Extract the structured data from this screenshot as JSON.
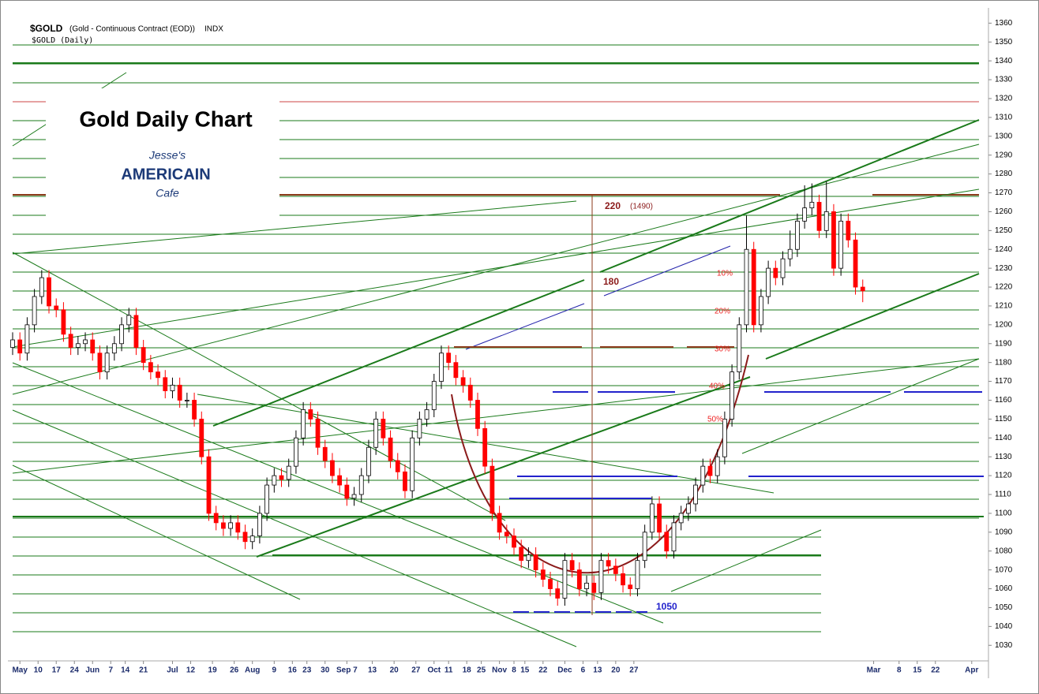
{
  "chart_data": {
    "type": "candlestick",
    "header": "$GOLD",
    "header_desc": "(Gold - Continuous Contract (EOD))",
    "header_exchange": "INDX",
    "subheader": "$GOLD (Daily)",
    "title": "Gold Daily Chart",
    "logo": [
      "Jesse's",
      "AMERICAIN",
      "Cafe"
    ],
    "annotations": [
      "220",
      "(1490)",
      "180",
      "10%",
      "20%",
      "30%",
      "40%",
      "50%",
      "1050"
    ],
    "up_color": "#ffffff",
    "down_color": "#ff0000",
    "xlim": [
      0,
      266
    ],
    "ylim": [
      1023,
      1366
    ],
    "yticks": [
      1030,
      1040,
      1050,
      1060,
      1070,
      1080,
      1090,
      1100,
      1110,
      1120,
      1130,
      1140,
      1150,
      1160,
      1170,
      1180,
      1190,
      1200,
      1210,
      1220,
      1230,
      1240,
      1250,
      1260,
      1270,
      1280,
      1290,
      1300,
      1310,
      1320,
      1330,
      1340,
      1350,
      1360
    ],
    "xticks": [
      {
        "value": 2,
        "label": "May"
      },
      {
        "value": 7,
        "label": "10"
      },
      {
        "value": 12,
        "label": "17"
      },
      {
        "value": 17,
        "label": "24"
      },
      {
        "value": 22,
        "label": "Jun"
      },
      {
        "value": 27,
        "label": "7"
      },
      {
        "value": 31,
        "label": "14"
      },
      {
        "value": 36,
        "label": "21"
      },
      {
        "value": 44,
        "label": "Jul"
      },
      {
        "value": 49,
        "label": "12"
      },
      {
        "value": 55,
        "label": "19"
      },
      {
        "value": 61,
        "label": "26"
      },
      {
        "value": 66,
        "label": "Aug"
      },
      {
        "value": 72,
        "label": "9"
      },
      {
        "value": 77,
        "label": "16"
      },
      {
        "value": 81,
        "label": "23"
      },
      {
        "value": 86,
        "label": "30"
      },
      {
        "value": 92,
        "label": "Sep 7"
      },
      {
        "value": 99,
        "label": "13"
      },
      {
        "value": 105,
        "label": "20"
      },
      {
        "value": 111,
        "label": "27"
      },
      {
        "value": 116,
        "label": "Oct"
      },
      {
        "value": 120,
        "label": "11"
      },
      {
        "value": 125,
        "label": "18"
      },
      {
        "value": 129,
        "label": "25"
      },
      {
        "value": 134,
        "label": "Nov"
      },
      {
        "value": 138,
        "label": "8"
      },
      {
        "value": 141,
        "label": "15"
      },
      {
        "value": 146,
        "label": "22"
      },
      {
        "value": 152,
        "label": "Dec"
      },
      {
        "value": 157,
        "label": "6"
      },
      {
        "value": 161,
        "label": "13"
      },
      {
        "value": 166,
        "label": "20"
      },
      {
        "value": 171,
        "label": "27"
      },
      {
        "value": 237,
        "label": "Mar"
      },
      {
        "value": 244,
        "label": "8"
      },
      {
        "value": 249,
        "label": "15"
      },
      {
        "value": 254,
        "label": "22"
      },
      {
        "value": 264,
        "label": "Apr"
      }
    ],
    "x": [
      0,
      2,
      4,
      6,
      8,
      10,
      12,
      14,
      16,
      18,
      20,
      22,
      24,
      26,
      28,
      30,
      32,
      34,
      36,
      38,
      40,
      42,
      44,
      46,
      48,
      50,
      52,
      54,
      56,
      58,
      60,
      62,
      64,
      66,
      68,
      70,
      72,
      74,
      76,
      78,
      80,
      82,
      84,
      86,
      88,
      90,
      92,
      94,
      96,
      98,
      100,
      102,
      104,
      106,
      108,
      110,
      112,
      114,
      116,
      118,
      120,
      122,
      124,
      126,
      128,
      130,
      132,
      134,
      136,
      138,
      140,
      142,
      144,
      146,
      148,
      150,
      152,
      154,
      156,
      158,
      160,
      162,
      164,
      166,
      168,
      170,
      172,
      174,
      176,
      178,
      180,
      182,
      184,
      186,
      188,
      190,
      192,
      194,
      196,
      198,
      200,
      202,
      204,
      206,
      208,
      210,
      212,
      214,
      216,
      218,
      220,
      222,
      224,
      226,
      228,
      230,
      232,
      234
    ],
    "open": [
      1188,
      1192,
      1185,
      1200,
      1215,
      1225,
      1210,
      1208,
      1195,
      1188,
      1190,
      1192,
      1185,
      1175,
      1185,
      1190,
      1200,
      1205,
      1188,
      1180,
      1175,
      1172,
      1165,
      1168,
      1160,
      1160,
      1150,
      1130,
      1100,
      1095,
      1092,
      1095,
      1090,
      1085,
      1088,
      1100,
      1115,
      1120,
      1118,
      1125,
      1140,
      1155,
      1150,
      1135,
      1128,
      1120,
      1115,
      1108,
      1110,
      1120,
      1135,
      1150,
      1140,
      1128,
      1122,
      1112,
      1140,
      1150,
      1155,
      1170,
      1185,
      1180,
      1172,
      1168,
      1160,
      1145,
      1125,
      1100,
      1090,
      1088,
      1082,
      1075,
      1078,
      1070,
      1065,
      1060,
      1055,
      1075,
      1070,
      1060,
      1063,
      1058,
      1075,
      1072,
      1068,
      1062,
      1060,
      1075,
      1090,
      1105,
      1090,
      1080,
      1095,
      1100,
      1105,
      1115,
      1125,
      1120,
      1130,
      1150,
      1175,
      1200,
      1240,
      1200,
      1215,
      1230,
      1225,
      1235,
      1240,
      1255,
      1262,
      1265,
      1250,
      1260,
      1230,
      1255,
      1245,
      1220
    ],
    "high": [
      1196,
      1196,
      1204,
      1219,
      1229,
      1229,
      1214,
      1212,
      1199,
      1194,
      1196,
      1196,
      1189,
      1189,
      1194,
      1204,
      1209,
      1209,
      1192,
      1184,
      1179,
      1176,
      1172,
      1172,
      1164,
      1164,
      1154,
      1134,
      1104,
      1099,
      1099,
      1099,
      1094,
      1092,
      1104,
      1119,
      1124,
      1124,
      1129,
      1144,
      1159,
      1159,
      1154,
      1139,
      1132,
      1124,
      1119,
      1114,
      1124,
      1139,
      1154,
      1154,
      1144,
      1132,
      1126,
      1144,
      1154,
      1159,
      1174,
      1189,
      1189,
      1184,
      1176,
      1172,
      1164,
      1149,
      1129,
      1104,
      1094,
      1092,
      1086,
      1082,
      1082,
      1074,
      1069,
      1064,
      1079,
      1079,
      1074,
      1067,
      1067,
      1079,
      1079,
      1076,
      1072,
      1066,
      1079,
      1094,
      1109,
      1109,
      1094,
      1099,
      1104,
      1109,
      1119,
      1129,
      1129,
      1134,
      1154,
      1179,
      1204,
      1258,
      1244,
      1219,
      1234,
      1234,
      1239,
      1250,
      1259,
      1274,
      1275,
      1269,
      1276,
      1264,
      1259,
      1259,
      1249,
      1224
    ],
    "low": [
      1184,
      1181,
      1181,
      1196,
      1211,
      1206,
      1204,
      1191,
      1184,
      1184,
      1186,
      1181,
      1171,
      1171,
      1181,
      1186,
      1196,
      1184,
      1176,
      1171,
      1168,
      1161,
      1161,
      1156,
      1156,
      1146,
      1126,
      1096,
      1091,
      1088,
      1088,
      1086,
      1081,
      1081,
      1084,
      1096,
      1111,
      1114,
      1114,
      1121,
      1136,
      1146,
      1131,
      1124,
      1116,
      1111,
      1104,
      1104,
      1106,
      1116,
      1131,
      1136,
      1124,
      1118,
      1108,
      1108,
      1136,
      1146,
      1151,
      1166,
      1176,
      1168,
      1164,
      1156,
      1141,
      1121,
      1096,
      1086,
      1084,
      1078,
      1071,
      1071,
      1066,
      1061,
      1056,
      1051,
      1051,
      1066,
      1056,
      1056,
      1054,
      1054,
      1068,
      1064,
      1058,
      1056,
      1056,
      1071,
      1086,
      1086,
      1076,
      1076,
      1091,
      1096,
      1101,
      1111,
      1116,
      1116,
      1126,
      1146,
      1171,
      1196,
      1196,
      1196,
      1211,
      1221,
      1221,
      1231,
      1236,
      1251,
      1258,
      1246,
      1246,
      1226,
      1226,
      1241,
      1216,
      1212
    ],
    "close": [
      1192,
      1185,
      1200,
      1215,
      1225,
      1210,
      1208,
      1195,
      1188,
      1190,
      1192,
      1185,
      1175,
      1185,
      1190,
      1200,
      1205,
      1188,
      1180,
      1175,
      1172,
      1165,
      1168,
      1160,
      1160,
      1150,
      1130,
      1100,
      1095,
      1092,
      1095,
      1090,
      1085,
      1088,
      1100,
      1115,
      1120,
      1118,
      1125,
      1140,
      1155,
      1150,
      1135,
      1128,
      1120,
      1115,
      1108,
      1110,
      1120,
      1135,
      1150,
      1140,
      1128,
      1122,
      1112,
      1140,
      1150,
      1155,
      1170,
      1185,
      1180,
      1172,
      1168,
      1160,
      1145,
      1125,
      1100,
      1090,
      1088,
      1082,
      1075,
      1078,
      1070,
      1065,
      1060,
      1055,
      1075,
      1070,
      1060,
      1063,
      1058,
      1075,
      1072,
      1068,
      1062,
      1060,
      1075,
      1090,
      1105,
      1090,
      1080,
      1095,
      1100,
      1105,
      1115,
      1125,
      1120,
      1130,
      1150,
      1175,
      1200,
      1240,
      1200,
      1215,
      1230,
      1225,
      1235,
      1240,
      1255,
      1262,
      1265,
      1250,
      1260,
      1230,
      1255,
      1245,
      1220,
      1218
    ]
  }
}
